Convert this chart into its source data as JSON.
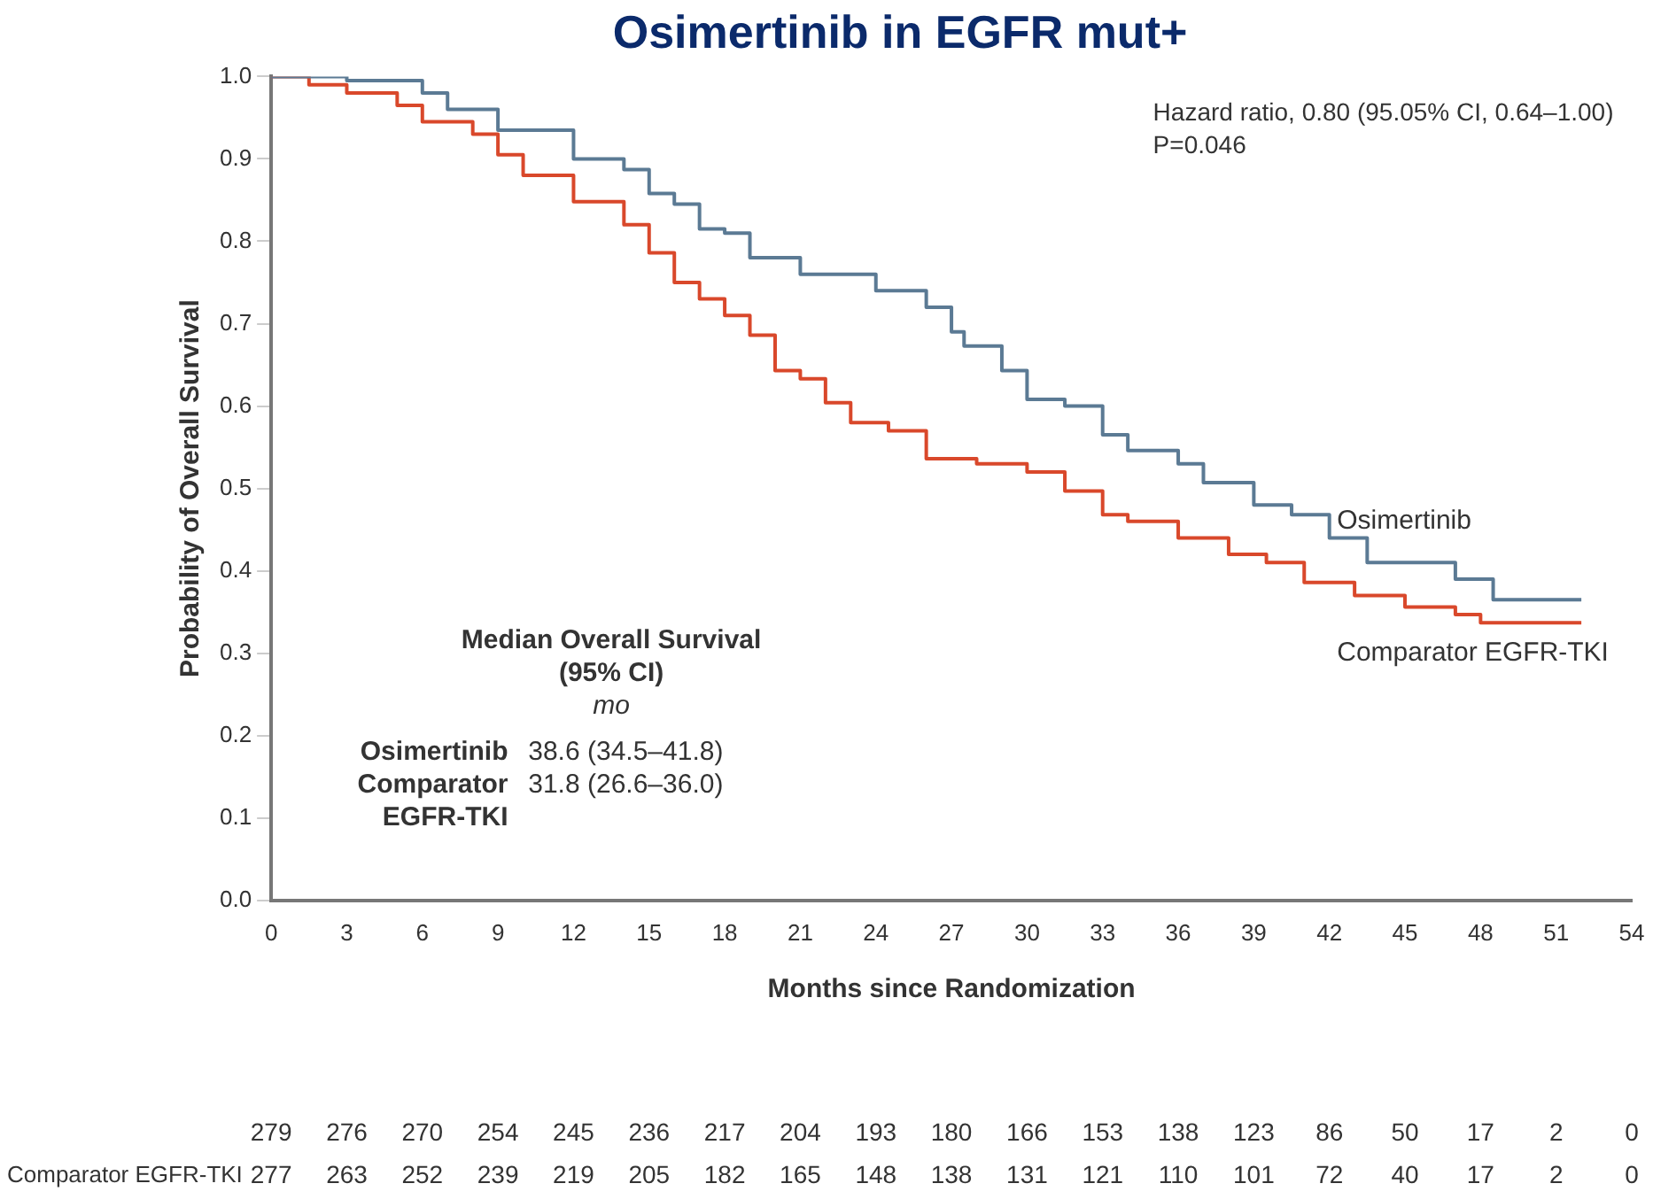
{
  "chart_data": {
    "type": "step",
    "title": "Osimertinib in EGFR mut+",
    "xlabel": "Months since Randomization",
    "ylabel": "Probability of Overall Survival",
    "xlim": [
      0,
      54
    ],
    "xticks": [
      0,
      3,
      6,
      9,
      12,
      15,
      18,
      21,
      24,
      27,
      30,
      33,
      36,
      39,
      42,
      45,
      48,
      51,
      54
    ],
    "ylim": [
      0,
      1
    ],
    "yticks": [
      {
        "value": 0,
        "label": "0.0"
      },
      {
        "value": 0.1,
        "label": "0.1"
      },
      {
        "value": 0.2,
        "label": "0.2"
      },
      {
        "value": 0.3,
        "label": "0.3"
      },
      {
        "value": 0.4,
        "label": "0.4"
      },
      {
        "value": 0.5,
        "label": "0.5"
      },
      {
        "value": 0.6,
        "label": "0.6"
      },
      {
        "value": 0.7,
        "label": "0.7"
      },
      {
        "value": 0.8,
        "label": "0.8"
      },
      {
        "value": 0.9,
        "label": "0.9"
      },
      {
        "value": 1,
        "label": "1.0"
      }
    ],
    "grid": false,
    "legend": false,
    "marker": "none",
    "line_style": "solid",
    "series": [
      {
        "name": "Osimertinib",
        "color": "#5b7a94",
        "x": [
          0,
          3,
          6,
          7,
          9,
          12,
          14,
          15,
          16,
          17,
          18,
          19,
          21,
          24,
          26,
          27,
          27.5,
          29,
          30,
          31.5,
          33,
          34,
          36,
          37,
          39,
          40.5,
          42,
          43.5,
          45.5,
          47,
          48.5,
          52
        ],
        "values": [
          1,
          0.995,
          0.98,
          0.96,
          0.935,
          0.9,
          0.887,
          0.858,
          0.845,
          0.815,
          0.81,
          0.78,
          0.76,
          0.74,
          0.72,
          0.69,
          0.673,
          0.643,
          0.608,
          0.6,
          0.565,
          0.546,
          0.53,
          0.507,
          0.48,
          0.468,
          0.44,
          0.41,
          0.41,
          0.39,
          0.365,
          0.365
        ]
      },
      {
        "name": "Comparator EGFR-TKI",
        "color": "#d9482b",
        "x": [
          0,
          1.5,
          3,
          5,
          6,
          8,
          9,
          10,
          12,
          14,
          15,
          16,
          17,
          18,
          19,
          20,
          21,
          22,
          23,
          24.5,
          26,
          28,
          30,
          31.5,
          33,
          34,
          36,
          38,
          39.5,
          41,
          43,
          45,
          47,
          48,
          52
        ],
        "values": [
          1,
          0.99,
          0.98,
          0.965,
          0.945,
          0.93,
          0.905,
          0.88,
          0.848,
          0.82,
          0.786,
          0.75,
          0.73,
          0.71,
          0.686,
          0.643,
          0.633,
          0.604,
          0.58,
          0.57,
          0.536,
          0.53,
          0.52,
          0.497,
          0.468,
          0.46,
          0.44,
          0.42,
          0.41,
          0.386,
          0.37,
          0.356,
          0.347,
          0.337,
          0.337
        ]
      }
    ],
    "annotations": [
      "Hazard ratio, 0.80 (95.05% CI, 0.64–1.00)",
      "P=0.046",
      "Median Overall Survival",
      "(95% CI)",
      "mo",
      "Osimertinib",
      "38.6 (34.5–41.8)",
      "Comparator",
      "EGFR-TKI",
      "31.8 (26.6–36.0)",
      "279 276 270 254 245 236 217 204 193 180 166 153 138 123 86 50 17 2 0",
      "Comparator EGFR-TKI",
      "277 263 252 239 219 205 182 165 148 138 131 121 110 101 72 40 17 2 0"
    ]
  }
}
